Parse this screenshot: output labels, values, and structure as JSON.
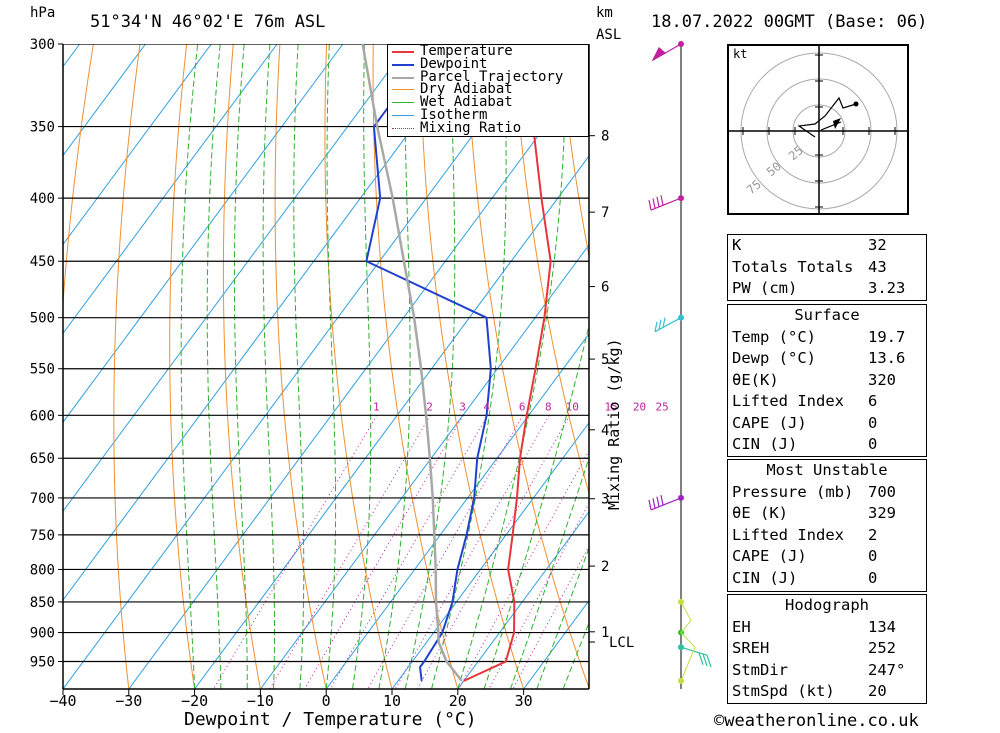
{
  "header": {
    "hpa_unit": "hPa",
    "location": "51°34'N  46°02'E  76m  ASL",
    "km_unit": "km",
    "asl_unit": "ASL",
    "datetime": "18.07.2022  00GMT  (Base: 06)"
  },
  "chart_data": {
    "type": "line",
    "subtype": "skew-T log-P sounding",
    "xlabel": "Dewpoint / Temperature (°C)",
    "ylabel_left": "hPa",
    "ylabel_right": "Mixing Ratio (g/kg)",
    "pressure_ticks": [
      300,
      350,
      400,
      450,
      500,
      550,
      600,
      650,
      700,
      750,
      800,
      850,
      900,
      950
    ],
    "temperature_ticks": [
      -40,
      -30,
      -20,
      -10,
      0,
      10,
      20,
      30
    ],
    "km_ticks": [
      1,
      2,
      3,
      4,
      5,
      6,
      7,
      8
    ],
    "lcl_label": "LCL",
    "mixing_ratio_labels": [
      "1",
      "2",
      "3",
      "4",
      "6",
      "8",
      "10",
      "15",
      "20",
      "25"
    ],
    "legend": [
      "Temperature",
      "Dewpoint",
      "Parcel Trajectory",
      "Dry Adiabat",
      "Wet Adiabat",
      "Isotherm",
      "Mixing Ratio"
    ],
    "colors": {
      "temperature": "#e8343a",
      "dewpoint": "#2040d0",
      "parcel": "#a8a8a8",
      "dry_adiabat": "#f09030",
      "wet_adiabat": "#30b030",
      "isotherm": "#30a0e0",
      "mixing_ratio": "#c020a0"
    },
    "series": [
      {
        "name": "Temperature",
        "points": [
          [
            985,
            20
          ],
          [
            950,
            24.2
          ],
          [
            900,
            22.2
          ],
          [
            850,
            18.8
          ],
          [
            800,
            14.2
          ],
          [
            750,
            11
          ],
          [
            700,
            7.5
          ],
          [
            650,
            3.5
          ],
          [
            600,
            -0.3
          ],
          [
            550,
            -4.2
          ],
          [
            500,
            -8.6
          ],
          [
            450,
            -14
          ],
          [
            400,
            -22.5
          ],
          [
            350,
            -31.8
          ],
          [
            300,
            -41
          ]
        ]
      },
      {
        "name": "Dewpoint",
        "points": [
          [
            985,
            13.6
          ],
          [
            960,
            11.8
          ],
          [
            950,
            11.8
          ],
          [
            900,
            11.3
          ],
          [
            850,
            9.4
          ],
          [
            800,
            6.5
          ],
          [
            750,
            4
          ],
          [
            700,
            1
          ],
          [
            650,
            -3
          ],
          [
            600,
            -6.4
          ],
          [
            550,
            -11
          ],
          [
            500,
            -17.4
          ],
          [
            450,
            -42
          ],
          [
            400,
            -47
          ],
          [
            350,
            -56
          ],
          [
            300,
            -56
          ]
        ]
      },
      {
        "name": "Parcel Trajectory",
        "points": [
          [
            985,
            19.7
          ],
          [
            950,
            15.2
          ],
          [
            916,
            11.8
          ],
          [
            900,
            10.7
          ],
          [
            850,
            6.9
          ],
          [
            800,
            3.2
          ],
          [
            750,
            -0.9
          ],
          [
            700,
            -5.3
          ],
          [
            650,
            -10.2
          ],
          [
            600,
            -15.6
          ],
          [
            550,
            -21.6
          ],
          [
            500,
            -28.4
          ],
          [
            450,
            -36.3
          ],
          [
            400,
            -45.1
          ],
          [
            350,
            -55.5
          ],
          [
            300,
            -67
          ]
        ]
      }
    ],
    "x_range": [
      -40,
      40
    ],
    "p_range": [
      300,
      1000
    ]
  },
  "hodograph": {
    "unit": "kt",
    "ring_labels": [
      "25",
      "50",
      "75"
    ]
  },
  "indices": {
    "k_label": "K",
    "k_value": "32",
    "tt_label": "Totals Totals",
    "tt_value": "43",
    "pw_label": "PW (cm)",
    "pw_value": "3.23"
  },
  "surface": {
    "title": "Surface",
    "temp_label": "Temp (°C)",
    "temp_value": "19.7",
    "dewp_label": "Dewp (°C)",
    "dewp_value": "13.6",
    "theta_label": "θE(K)",
    "theta_value": "320",
    "li_label": "Lifted Index",
    "li_value": "6",
    "cape_label": "CAPE (J)",
    "cape_value": "0",
    "cin_label": "CIN (J)",
    "cin_value": "0"
  },
  "most_unstable": {
    "title": "Most Unstable",
    "pressure_label": "Pressure (mb)",
    "pressure_value": "700",
    "theta_label": "θE (K)",
    "theta_value": "329",
    "li_label": "Lifted Index",
    "li_value": "2",
    "cape_label": "CAPE (J)",
    "cape_value": "0",
    "cin_label": "CIN (J)",
    "cin_value": "0"
  },
  "hodograph_params": {
    "title": "Hodograph",
    "eh_label": "EH",
    "eh_value": "134",
    "sreh_label": "SREH",
    "sreh_value": "252",
    "stmdir_label": "StmDir",
    "stmdir_value": "247°",
    "stmspd_label": "StmSpd (kt)",
    "stmspd_value": "20"
  },
  "footer": {
    "copyright": "©weatheronline.co.uk"
  }
}
